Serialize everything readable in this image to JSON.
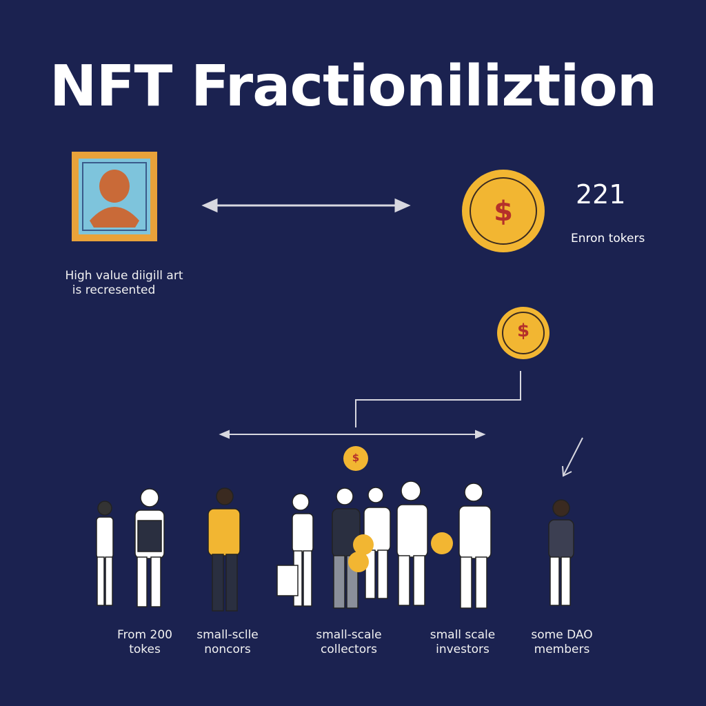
{
  "title": "NFT Fractioniliztion",
  "art": {
    "caption_line1": "High value diigill art",
    "caption_line2": "is recresented"
  },
  "token": {
    "count": "221",
    "label": "Enron tokers",
    "symbol": "$"
  },
  "groups": [
    {
      "line1": "From 200",
      "line2": "tokes"
    },
    {
      "line1": "small-sclle",
      "line2": "noncors"
    },
    {
      "line1": "small-scale",
      "line2": "collectors"
    },
    {
      "line1": "small scale",
      "line2": "investors"
    },
    {
      "line1": "some DAO",
      "line2": "members"
    }
  ],
  "colors": {
    "background": "#1b2250",
    "coin": "#f2b632",
    "coin_symbol": "#b5302a",
    "frame": "#e9a23a",
    "art_bg": "#7ec4dc",
    "accent_shirt": "#f2b632"
  }
}
